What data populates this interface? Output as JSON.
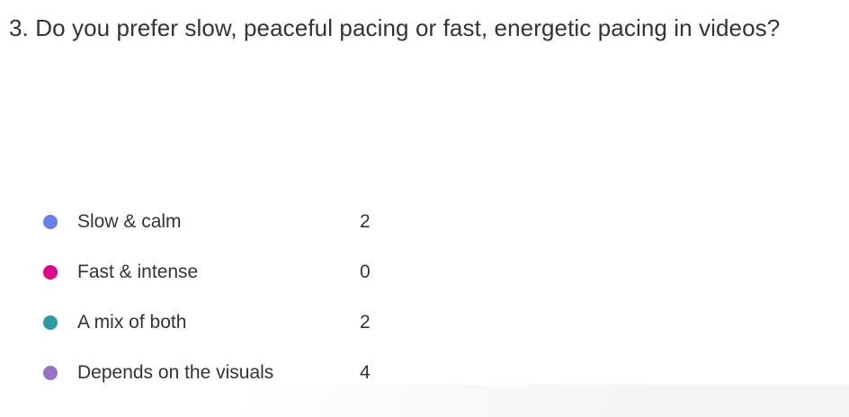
{
  "question": {
    "title": "3. Do you prefer slow, peaceful pacing or fast, energetic pacing in videos?"
  },
  "options": [
    {
      "label": "Slow & calm",
      "count": "2",
      "color": "#6A7EE8"
    },
    {
      "label": "Fast & intense",
      "count": "0",
      "color": "#E3008C"
    },
    {
      "label": "A mix of both",
      "count": "2",
      "color": "#2E9BA1"
    },
    {
      "label": "Depends on the visuals",
      "count": "4",
      "color": "#9673C6"
    }
  ],
  "chart_data": {
    "type": "pie",
    "title": "3. Do you prefer slow, peaceful pacing or fast, energetic pacing in videos?",
    "categories": [
      "Slow & calm",
      "Fast & intense",
      "A mix of both",
      "Depends on the visuals"
    ],
    "values": [
      2,
      0,
      2,
      4
    ],
    "legend_position": "left",
    "colors": [
      "#6A7EE8",
      "#E3008C",
      "#2E9BA1",
      "#9673C6"
    ]
  },
  "colors": {
    "text": "#333333",
    "background": "#ffffff",
    "bottom_fade": "#f4f4f4"
  }
}
